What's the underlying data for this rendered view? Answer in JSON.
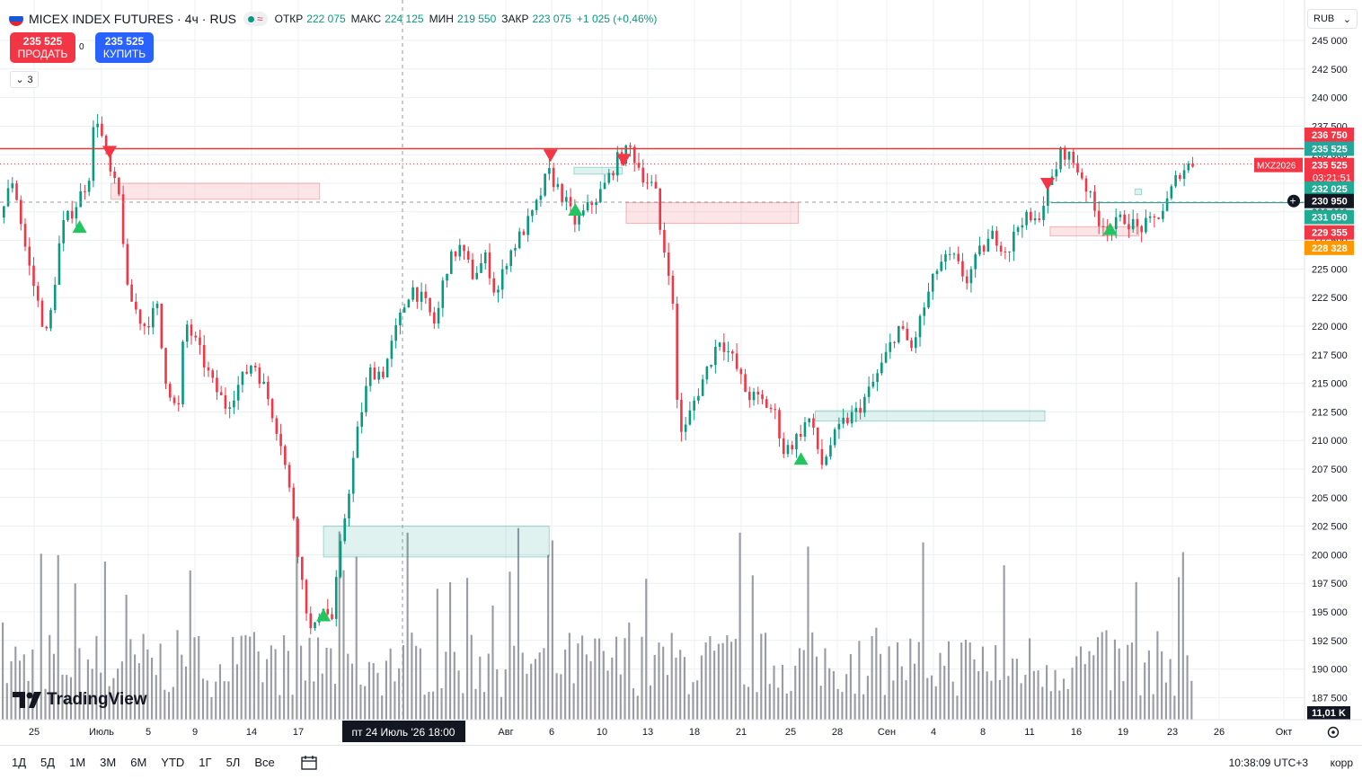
{
  "header": {
    "symbol": "MICEX INDEX FUTURES",
    "interval": "4ч",
    "exchange": "RUS",
    "separator": "·",
    "ohlc": {
      "open_label": "ОТКР",
      "open": "222 075",
      "high_label": "МАКС",
      "high": "224 125",
      "low_label": "МИН",
      "low": "219 550",
      "close_label": "ЗАКР",
      "close": "223 075",
      "change": "+1 025 (+0,46%)"
    }
  },
  "trade": {
    "sell_price": "235 525",
    "sell_label": "ПРОДАТЬ",
    "spread": "0",
    "buy_price": "235 525",
    "buy_label": "КУПИТЬ"
  },
  "indicators_collapsed_count": "3",
  "currency": "RUB",
  "logo_text": "TradingView",
  "colors": {
    "up": "#089981",
    "down": "#f23645",
    "accent": "#2962ff",
    "grid": "#eceff3"
  },
  "icons": [
    "flag-icon",
    "market-status-dot-icon",
    "wave-icon",
    "chevron-down-icon",
    "tradingview-logo-icon",
    "calendar-icon",
    "settings-gear-icon",
    "plus-circle-icon",
    "triangle-up-icon",
    "triangle-down-icon"
  ],
  "chart_data": {
    "type": "candlestick",
    "y_ticks": [
      "245 000",
      "242 500",
      "240 000",
      "237 500",
      "235 000",
      "232 500",
      "230 000",
      "227 500",
      "225 000",
      "222 500",
      "220 000",
      "217 500",
      "215 000",
      "212 500",
      "210 000",
      "207 500",
      "205 000",
      "202 500",
      "200 000",
      "197 500",
      "195 000",
      "192 500",
      "190 000",
      "187 500"
    ],
    "y_tick_values": [
      245000,
      242500,
      240000,
      237500,
      235000,
      232500,
      230000,
      227500,
      225000,
      222500,
      220000,
      217500,
      215000,
      212500,
      210000,
      207500,
      205000,
      202500,
      200000,
      197500,
      195000,
      192500,
      190000,
      187500
    ],
    "x_ticks": [
      "25",
      "Июль",
      "5",
      "9",
      "14",
      "17",
      "Авг",
      "6",
      "10",
      "13",
      "18",
      "21",
      "25",
      "28",
      "Сен",
      "4",
      "8",
      "11",
      "16",
      "19",
      "23",
      "26",
      "Окт"
    ],
    "crosshair_x_label": "пт 24 Июль '26   18:00",
    "price_labels": [
      {
        "text": "236 750",
        "price": 236750,
        "color": "#f23645"
      },
      {
        "text": "235 525",
        "price": 235525,
        "color": "#26a69a"
      },
      {
        "text": "235 525",
        "price": 234100,
        "color": "#f23645",
        "sub": "03:21:51",
        "tag": "MXZ2026"
      },
      {
        "text": "232 025",
        "price": 232025,
        "color": "#22ab94"
      },
      {
        "text": "230 950",
        "price": 230950,
        "color": "#131722",
        "crosshair": true
      },
      {
        "text": "231 050",
        "price": 229550,
        "color": "#22ab94"
      },
      {
        "text": "229 355",
        "price": 228200,
        "color": "#f23645"
      },
      {
        "text": "228 328",
        "price": 226850,
        "color": "#ff9800"
      }
    ],
    "volume_label": "11,01 K",
    "resistance_line": 235525,
    "zones": [
      {
        "x1": 0.085,
        "x2": 0.245,
        "y1": 231100,
        "y2": 232500,
        "kind": "supply"
      },
      {
        "x1": 0.48,
        "x2": 0.612,
        "y1": 229000,
        "y2": 230800,
        "kind": "supply"
      },
      {
        "x1": 0.248,
        "x2": 0.421,
        "y1": 199800,
        "y2": 202500,
        "kind": "demand"
      },
      {
        "x1": 0.625,
        "x2": 0.801,
        "y1": 211700,
        "y2": 212600,
        "kind": "demand"
      },
      {
        "x1": 0.44,
        "x2": 0.477,
        "y1": 233300,
        "y2": 233900,
        "kind": "demand"
      },
      {
        "x1": 0.805,
        "x2": 0.873,
        "y1": 227900,
        "y2": 228700,
        "kind": "supply"
      },
      {
        "x1": 0.875,
        "x2": 0.87,
        "y1": 231500,
        "y2": 232000,
        "kind": "demand"
      }
    ],
    "signals": [
      {
        "x": 0.061,
        "price": 228800,
        "dir": "up"
      },
      {
        "x": 0.084,
        "price": 235300,
        "dir": "down"
      },
      {
        "x": 0.248,
        "price": 194800,
        "dir": "up"
      },
      {
        "x": 0.422,
        "price": 235000,
        "dir": "down"
      },
      {
        "x": 0.441,
        "price": 230300,
        "dir": "up"
      },
      {
        "x": 0.478,
        "price": 234600,
        "dir": "down"
      },
      {
        "x": 0.614,
        "price": 208500,
        "dir": "up"
      },
      {
        "x": 0.803,
        "price": 232500,
        "dir": "down"
      },
      {
        "x": 0.851,
        "price": 228600,
        "dir": "up"
      }
    ],
    "path": [
      [
        0.0,
        229500
      ],
      [
        0.01,
        233000
      ],
      [
        0.02,
        226000
      ],
      [
        0.03,
        221000
      ],
      [
        0.035,
        219000
      ],
      [
        0.045,
        228500
      ],
      [
        0.055,
        230500
      ],
      [
        0.065,
        233000
      ],
      [
        0.07,
        239000
      ],
      [
        0.08,
        233500
      ],
      [
        0.088,
        231000
      ],
      [
        0.093,
        223000
      ],
      [
        0.105,
        220000
      ],
      [
        0.115,
        221500
      ],
      [
        0.12,
        216000
      ],
      [
        0.13,
        212000
      ],
      [
        0.135,
        220500
      ],
      [
        0.145,
        218000
      ],
      [
        0.155,
        215000
      ],
      [
        0.165,
        213000
      ],
      [
        0.175,
        215000
      ],
      [
        0.185,
        217000
      ],
      [
        0.195,
        214000
      ],
      [
        0.205,
        210000
      ],
      [
        0.215,
        203000
      ],
      [
        0.22,
        198000
      ],
      [
        0.228,
        192500
      ],
      [
        0.235,
        196000
      ],
      [
        0.242,
        194000
      ],
      [
        0.25,
        202000
      ],
      [
        0.255,
        206000
      ],
      [
        0.262,
        211500
      ],
      [
        0.27,
        216000
      ],
      [
        0.28,
        216000
      ],
      [
        0.29,
        220000
      ],
      [
        0.3,
        223500
      ],
      [
        0.31,
        222000
      ],
      [
        0.318,
        220000
      ],
      [
        0.325,
        225000
      ],
      [
        0.335,
        227000
      ],
      [
        0.345,
        224500
      ],
      [
        0.355,
        226000
      ],
      [
        0.362,
        222500
      ],
      [
        0.37,
        226000
      ],
      [
        0.38,
        228000
      ],
      [
        0.39,
        230000
      ],
      [
        0.4,
        233500
      ],
      [
        0.41,
        231500
      ],
      [
        0.42,
        229000
      ],
      [
        0.43,
        230500
      ],
      [
        0.44,
        232000
      ],
      [
        0.45,
        234500
      ],
      [
        0.46,
        235500
      ],
      [
        0.47,
        233000
      ],
      [
        0.478,
        232000
      ],
      [
        0.482,
        228000
      ],
      [
        0.49,
        224000
      ],
      [
        0.495,
        211000
      ],
      [
        0.5,
        211000
      ],
      [
        0.505,
        213000
      ],
      [
        0.515,
        216000
      ],
      [
        0.525,
        219000
      ],
      [
        0.535,
        217000
      ],
      [
        0.545,
        214000
      ],
      [
        0.555,
        213500
      ],
      [
        0.565,
        212500
      ],
      [
        0.572,
        209000
      ],
      [
        0.58,
        210000
      ],
      [
        0.59,
        212000
      ],
      [
        0.6,
        207800
      ],
      [
        0.605,
        209500
      ],
      [
        0.615,
        211500
      ],
      [
        0.625,
        212500
      ],
      [
        0.635,
        214500
      ],
      [
        0.645,
        217000
      ],
      [
        0.655,
        220000
      ],
      [
        0.665,
        218000
      ],
      [
        0.675,
        222000
      ],
      [
        0.685,
        225500
      ],
      [
        0.695,
        226000
      ],
      [
        0.705,
        224000
      ],
      [
        0.715,
        226500
      ],
      [
        0.725,
        228000
      ],
      [
        0.735,
        226500
      ],
      [
        0.745,
        229500
      ],
      [
        0.755,
        229000
      ],
      [
        0.765,
        232000
      ],
      [
        0.775,
        235500
      ],
      [
        0.782,
        234500
      ],
      [
        0.79,
        233000
      ],
      [
        0.8,
        229500
      ],
      [
        0.81,
        228500
      ],
      [
        0.82,
        229500
      ],
      [
        0.83,
        228500
      ],
      [
        0.84,
        229000
      ],
      [
        0.85,
        230500
      ],
      [
        0.86,
        233500
      ],
      [
        0.87,
        234300
      ]
    ]
  }
}
